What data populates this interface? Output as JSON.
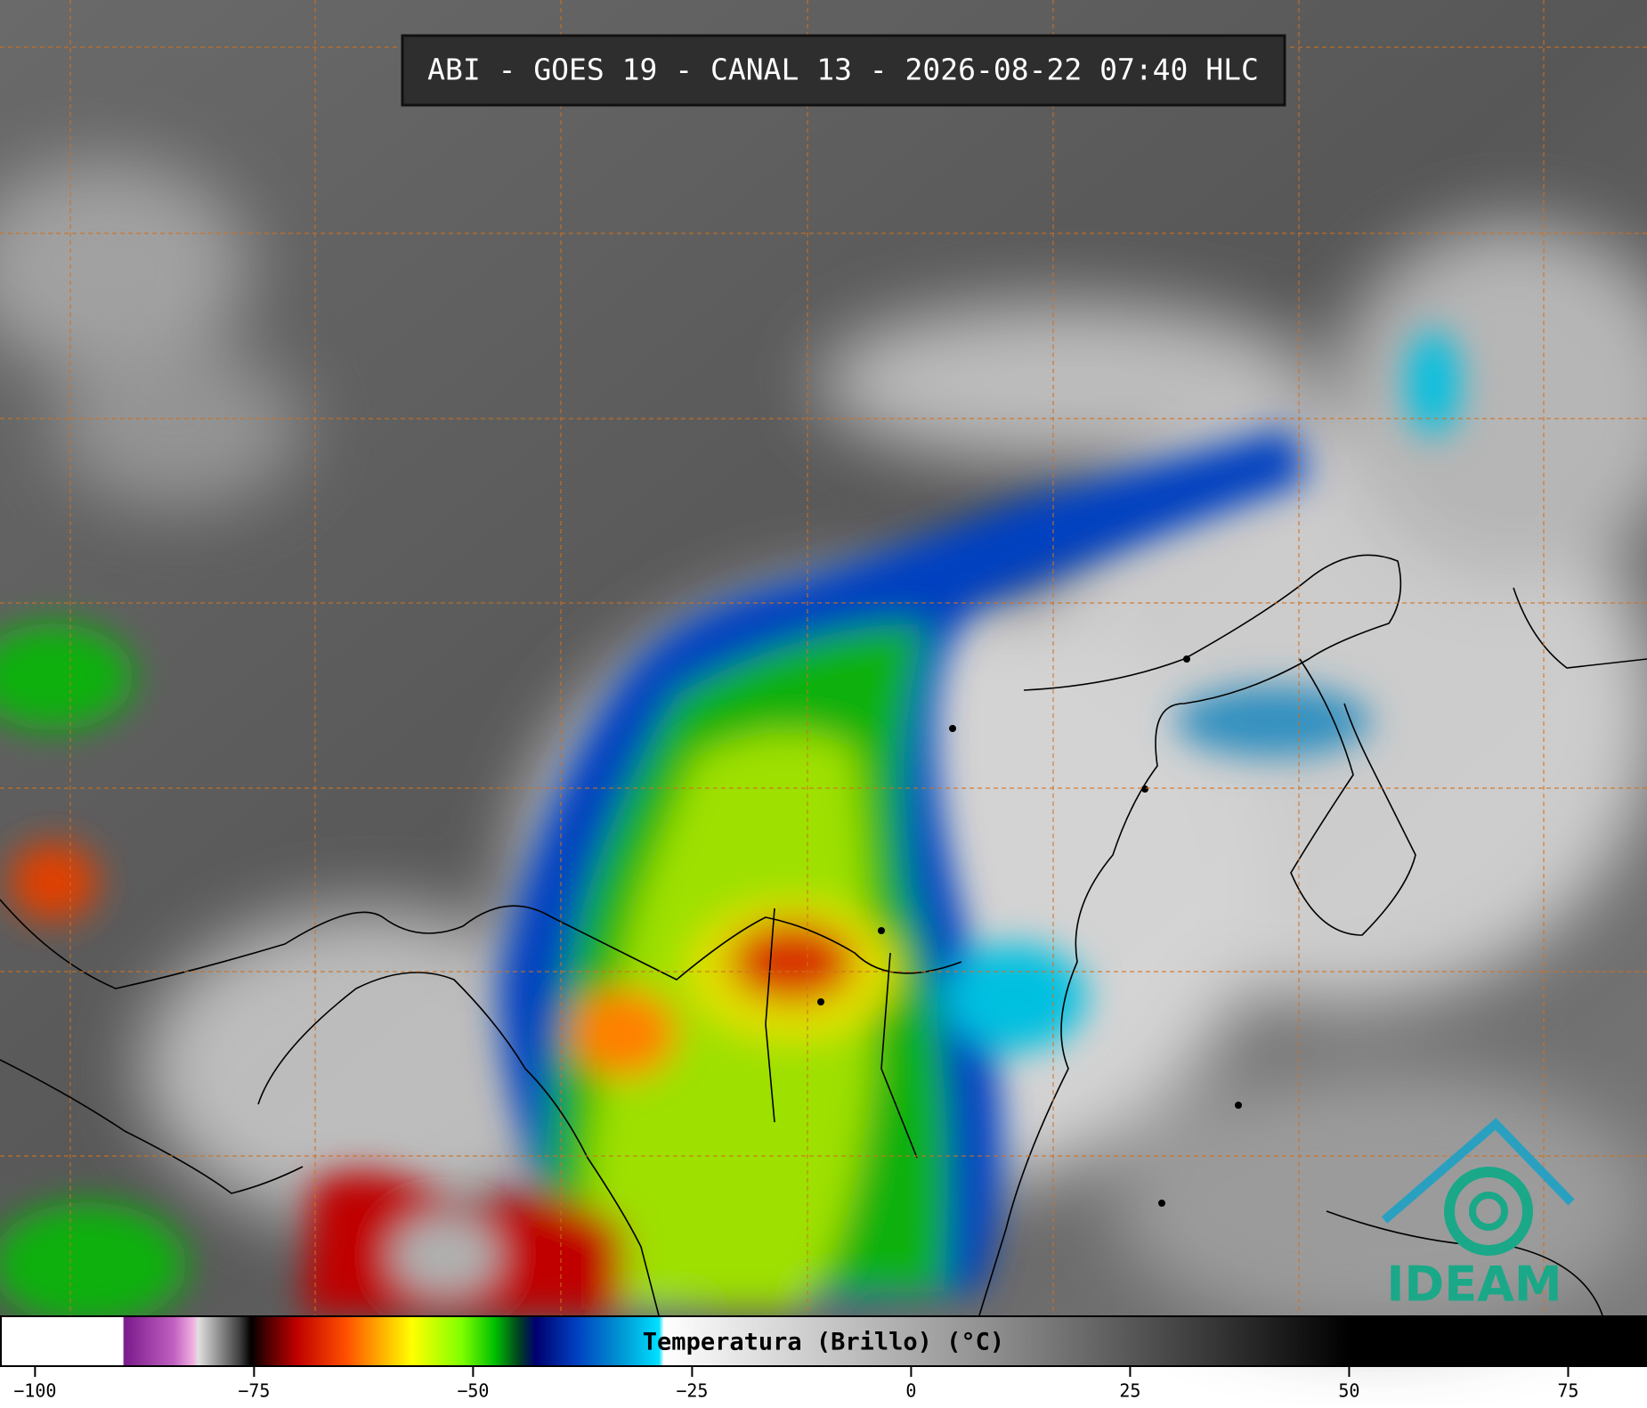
{
  "header": {
    "title": "ABI - GOES 19 - CANAL 13 - 2026-08-22 07:40 HLC"
  },
  "colorbar": {
    "label": "Temperatura (Brillo) (°C)",
    "range": [
      -104,
      84
    ],
    "ticks": [
      {
        "value": -100,
        "label": "−100"
      },
      {
        "value": -75,
        "label": "−75"
      },
      {
        "value": -50,
        "label": "−50"
      },
      {
        "value": -25,
        "label": "−25"
      },
      0,
      25,
      50,
      75
    ]
  },
  "logo": {
    "text": "IDEAM"
  }
}
